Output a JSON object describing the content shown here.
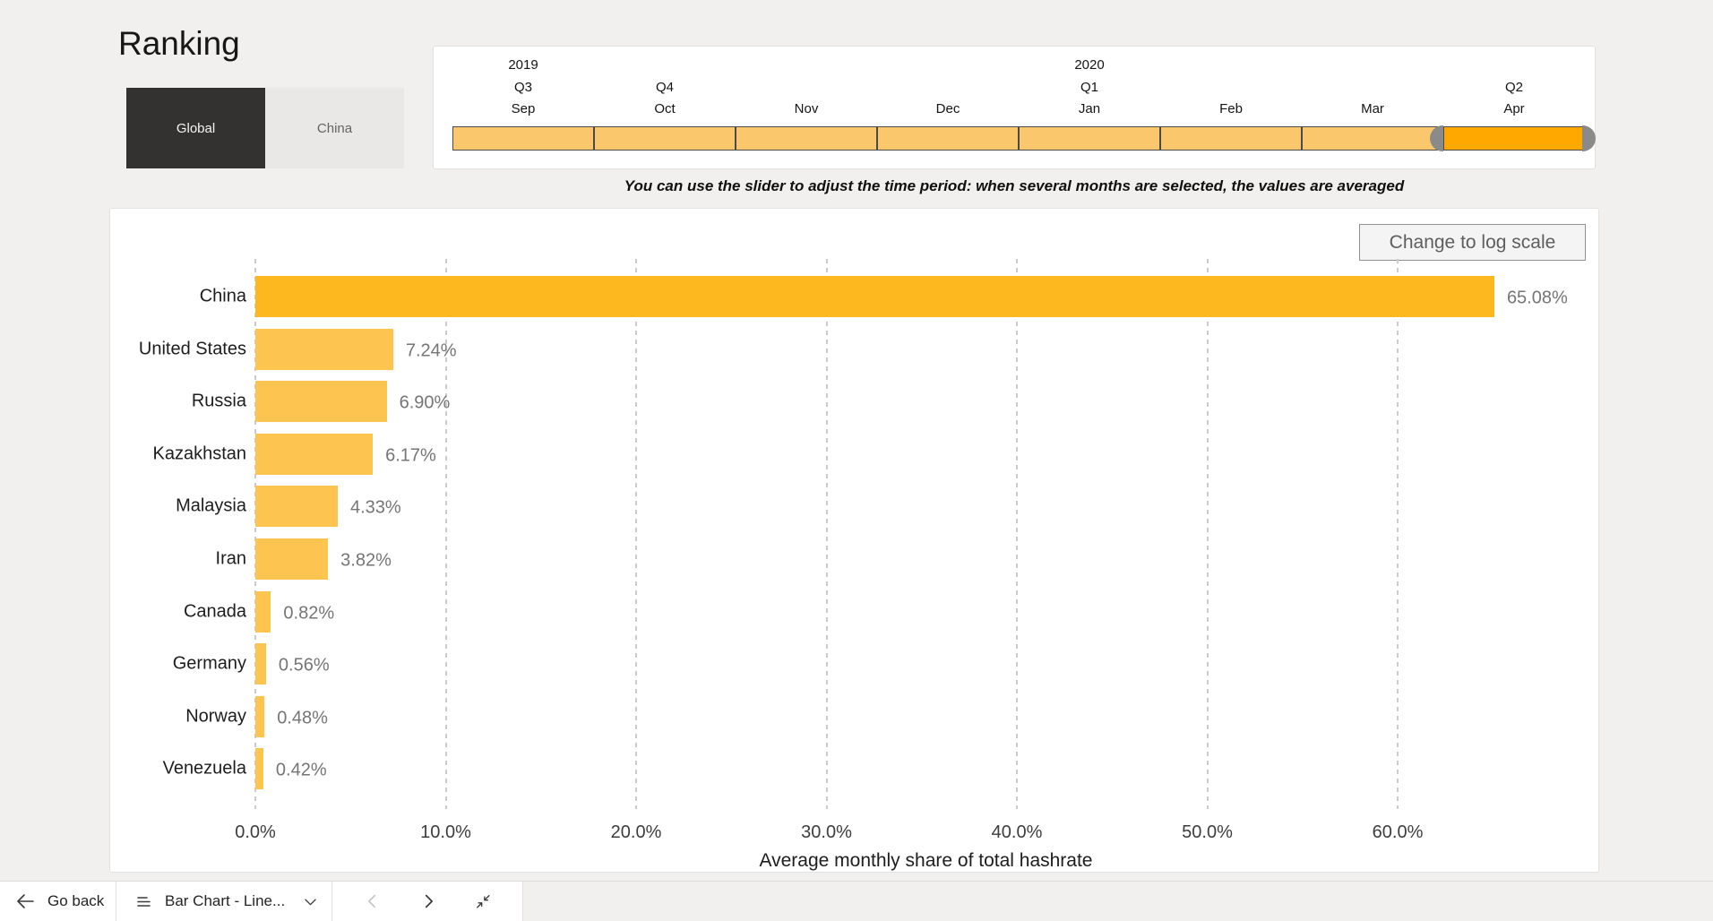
{
  "page": {
    "title": "Ranking"
  },
  "scope_toggle": {
    "options": [
      {
        "label": "Global",
        "active": true
      },
      {
        "label": "China",
        "active": false
      }
    ]
  },
  "time_slider": {
    "segments": [
      {
        "year": "2019",
        "quarter": "Q3",
        "month": "Sep",
        "selected": false
      },
      {
        "quarter": "Q4",
        "month": "Oct",
        "selected": false
      },
      {
        "month": "Nov",
        "selected": false
      },
      {
        "month": "Dec",
        "selected": false
      },
      {
        "year": "2020",
        "quarter": "Q1",
        "month": "Jan",
        "selected": false
      },
      {
        "month": "Feb",
        "selected": false
      },
      {
        "month": "Mar",
        "selected": false
      },
      {
        "quarter": "Q2",
        "month": "Apr",
        "selected": true
      }
    ],
    "note": "You can use the slider to adjust the time period: when several months are selected, the values are averaged",
    "colors": {
      "segment": "#fbc76d",
      "selected_segment": "#ffa800",
      "handle": "#8a8a8a"
    }
  },
  "chart": {
    "log_scale_button": "Change to log scale"
  },
  "chart_data": {
    "type": "bar",
    "orientation": "horizontal",
    "categories": [
      "China",
      "United States",
      "Russia",
      "Kazakhstan",
      "Malaysia",
      "Iran",
      "Canada",
      "Germany",
      "Norway",
      "Venezuela"
    ],
    "values": [
      65.08,
      7.24,
      6.9,
      6.17,
      4.33,
      3.82,
      0.82,
      0.56,
      0.48,
      0.42
    ],
    "value_labels": [
      "65.08%",
      "7.24%",
      "6.90%",
      "6.17%",
      "4.33%",
      "3.82%",
      "0.82%",
      "0.56%",
      "0.48%",
      "0.42%"
    ],
    "x_ticks": [
      "0.0%",
      "10.0%",
      "20.0%",
      "30.0%",
      "40.0%",
      "50.0%",
      "60.0%"
    ],
    "x_tick_values": [
      0,
      10,
      20,
      30,
      40,
      50,
      60
    ],
    "xlim": [
      0,
      66
    ],
    "xlabel": "Average monthly share of total hashrate",
    "grid": "dashed-vertical",
    "legend": "none",
    "highlight_category": "China",
    "bar_color": "#fdc450",
    "highlight_color": "#fcb81e",
    "value_label_color": "#757575"
  },
  "toolbar": {
    "go_back": "Go back",
    "page_selector": "Bar Chart - Line...",
    "icons": {
      "back": "back-arrow-icon",
      "pages": "page-list-icon",
      "expand": "chevron-down-icon",
      "previous": "prev-page-icon",
      "next": "next-page-icon",
      "exit": "exit-focus-icon"
    }
  }
}
